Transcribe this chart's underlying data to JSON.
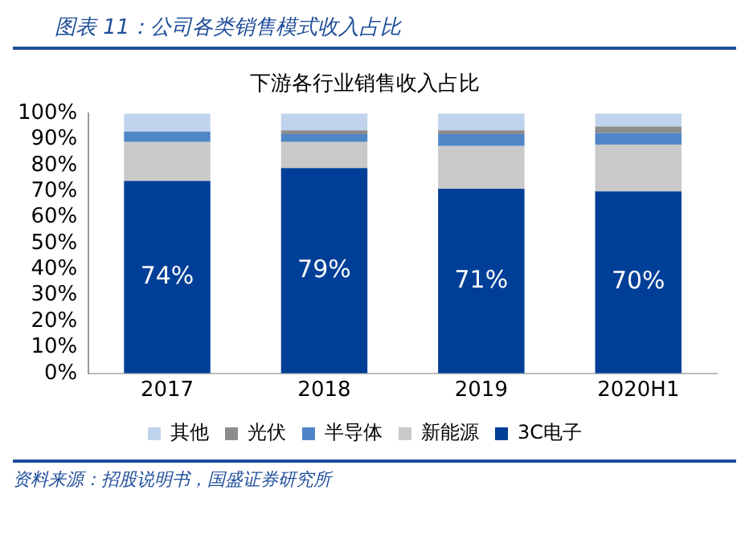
{
  "chart_data": {
    "type": "bar",
    "title": "图表 11：公司各类销售模式收入占比",
    "subtitle": "下游各行业销售收入占比",
    "categories": [
      "2017",
      "2018",
      "2019",
      "2020H1"
    ],
    "stacked": true,
    "series": [
      {
        "name": "3C电子",
        "color": "#003f98",
        "values": [
          74,
          79,
          71,
          70
        ],
        "value_labels": [
          "74%",
          "79%",
          "71%",
          "70%"
        ]
      },
      {
        "name": "新能源",
        "color": "#c9c9c9",
        "values": [
          15,
          10,
          16.5,
          18
        ]
      },
      {
        "name": "半导体",
        "color": "#4f86c6",
        "values": [
          4,
          3,
          4.5,
          4.5
        ]
      },
      {
        "name": "光伏",
        "color": "#8c8c8c",
        "values": [
          0,
          1.5,
          1.5,
          2.5
        ]
      },
      {
        "name": "其他",
        "color": "#c0d3ec",
        "values": [
          7,
          6.5,
          6.5,
          5
        ]
      }
    ],
    "ylim": [
      0,
      100
    ],
    "yticks": [
      {
        "value": 0,
        "label": "0%"
      },
      {
        "value": 10,
        "label": "10%"
      },
      {
        "value": 20,
        "label": "20%"
      },
      {
        "value": 30,
        "label": "30%"
      },
      {
        "value": 40,
        "label": "40%"
      },
      {
        "value": 50,
        "label": "50%"
      },
      {
        "value": 60,
        "label": "60%"
      },
      {
        "value": 70,
        "label": "70%"
      },
      {
        "value": 80,
        "label": "80%"
      },
      {
        "value": 90,
        "label": "90%"
      },
      {
        "value": 100,
        "label": "100%"
      }
    ],
    "grid": false,
    "legend": "bottom",
    "annotations": [
      "资料来源：招股说明书，国盛证券研究所"
    ]
  }
}
